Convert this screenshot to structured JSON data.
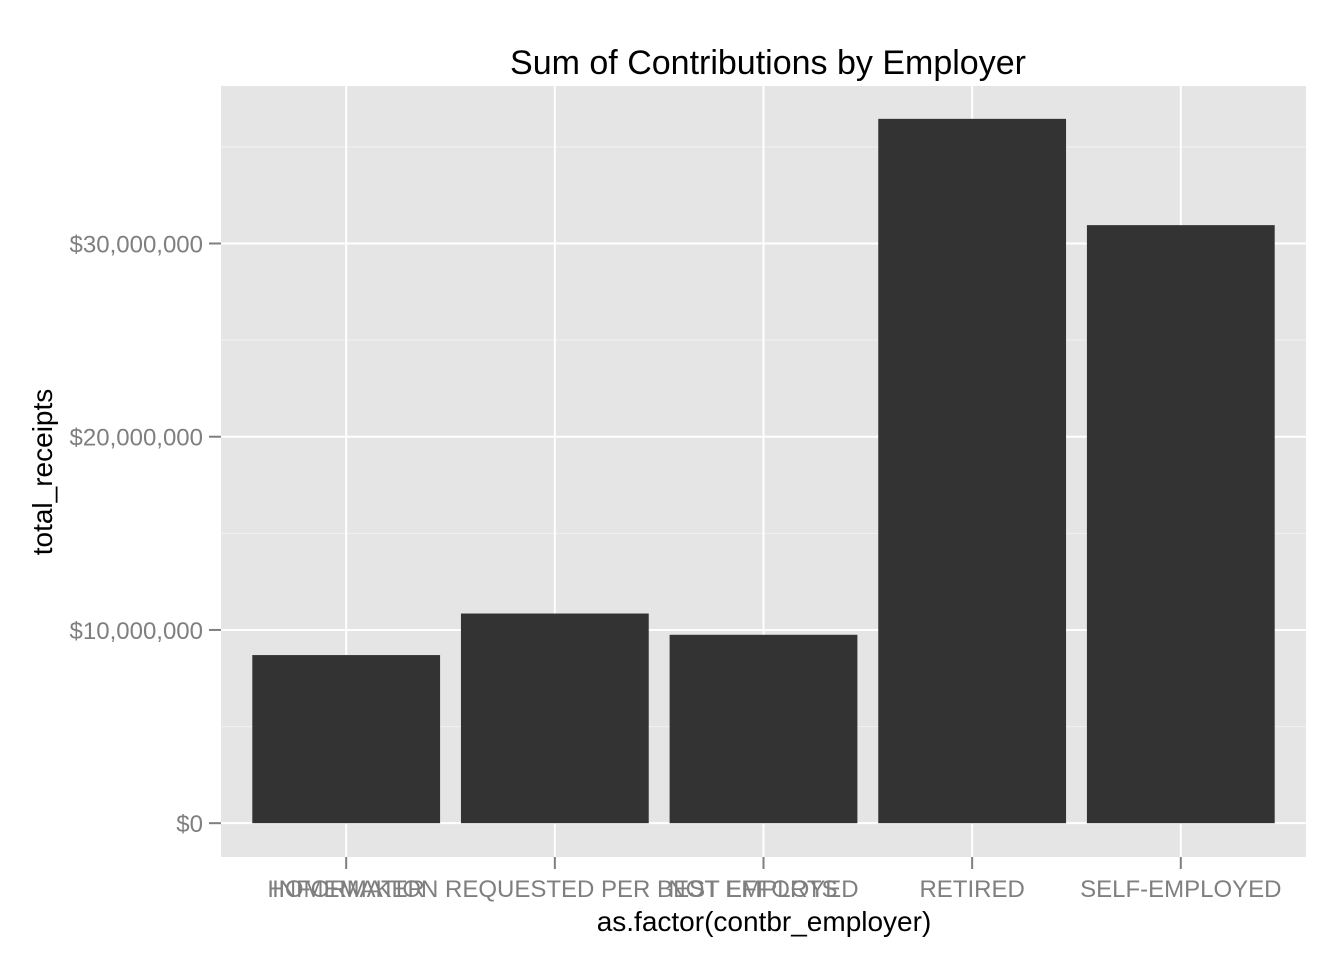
{
  "chart_data": {
    "type": "bar",
    "title": "Sum of Contributions by Employer",
    "xlabel": "as.factor(contbr_employer)",
    "ylabel": "total_receipts",
    "categories": [
      "HOMEMAKER",
      "INFORMATION REQUESTED PER BEST EFFORTS",
      "NOT EMPLOYED",
      "RETIRED",
      "SELF-EMPLOYED"
    ],
    "values": [
      8700000,
      10850000,
      9750000,
      36450000,
      30950000
    ],
    "ylim": [
      -1750000,
      38150000
    ],
    "yticks": [
      0,
      10000000,
      20000000,
      30000000
    ],
    "ytick_labels": [
      "$0",
      "$10,000,000",
      "$20,000,000",
      "$30,000,000"
    ],
    "grid": true,
    "legend": "none",
    "colors": {
      "bar": "#333333",
      "panel": "#e5e5e5",
      "grid_major": "#ffffff",
      "grid_minor": "#f2f2f2",
      "tick_text": "#7f7f7f"
    }
  }
}
